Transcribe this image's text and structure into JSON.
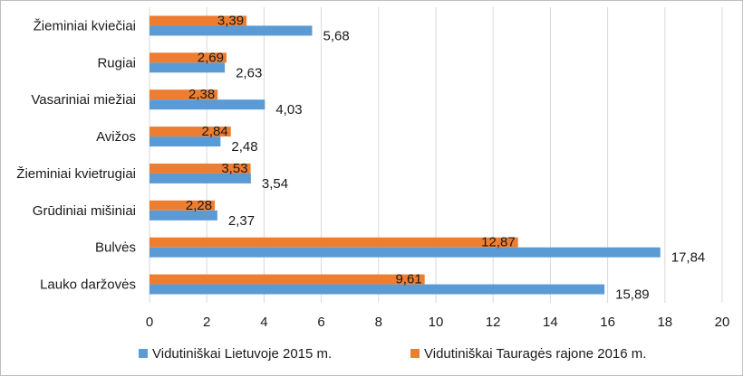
{
  "chart_data": {
    "type": "bar",
    "orientation": "horizontal",
    "title": "",
    "xlabel": "",
    "ylabel": "",
    "xlim": [
      0,
      20
    ],
    "x_ticks": [
      "0",
      "2",
      "4",
      "6",
      "8",
      "10",
      "12",
      "14",
      "16",
      "18",
      "20"
    ],
    "grid": true,
    "legend_position": "bottom",
    "categories": [
      "Žieminiai kviečiai",
      "Rugiai",
      "Vasariniai miežiai",
      "Avižos",
      "Žieminiai kvietrugiai",
      "Grūdiniai mišiniai",
      "Bulvės",
      "Lauko daržovės"
    ],
    "series": [
      {
        "name": "Vidutiniškai Tauragės rajone 2016 m.",
        "color": "#ED7D31",
        "values": [
          3.39,
          2.69,
          2.38,
          2.84,
          3.53,
          2.28,
          12.87,
          9.61
        ],
        "labels": [
          "3,39",
          "2,69",
          "2,38",
          "2,84",
          "3,53",
          "2,28",
          "12,87",
          "9,61"
        ]
      },
      {
        "name": "Vidutiniškai Lietuvoje 2015 m.",
        "color": "#5B9BD5",
        "values": [
          5.68,
          2.63,
          4.03,
          2.48,
          3.54,
          2.37,
          17.84,
          15.89
        ],
        "labels": [
          "5,68",
          "2,63",
          "4,03",
          "2,48",
          "3,54",
          "2,37",
          "17,84",
          "15,89"
        ]
      }
    ]
  }
}
